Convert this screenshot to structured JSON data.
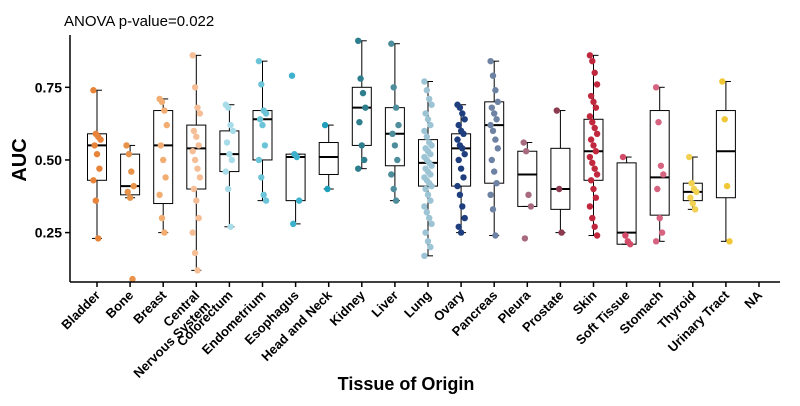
{
  "chart_data": {
    "type": "box",
    "annotation": "ANOVA p-value=0.022",
    "ylabel": "AUC",
    "xlabel": "Tissue of Origin",
    "ylim": [
      0.08,
      0.93
    ],
    "yticks": [
      0.25,
      0.5,
      0.75
    ],
    "ytick_labels": [
      "0.25",
      "0.50",
      "0.75"
    ],
    "grid": false,
    "categories": [
      {
        "name": "Bladder",
        "color": "#E8843A",
        "box": {
          "whisker_low": 0.23,
          "q1": 0.43,
          "median": 0.55,
          "q3": 0.59,
          "whisker_high": 0.74
        },
        "points": [
          0.74,
          0.59,
          0.58,
          0.57,
          0.55,
          0.52,
          0.47,
          0.43,
          0.36,
          0.23
        ]
      },
      {
        "name": "Bone",
        "color": "#E8924A",
        "box": {
          "whisker_low": 0.37,
          "q1": 0.38,
          "median": 0.41,
          "q3": 0.52,
          "whisker_high": 0.55
        },
        "points": [
          0.55,
          0.52,
          0.46,
          0.41,
          0.39,
          0.37,
          0.09
        ]
      },
      {
        "name": "Breast",
        "color": "#F2AE72",
        "box": {
          "whisker_low": 0.25,
          "q1": 0.35,
          "median": 0.55,
          "q3": 0.67,
          "whisker_high": 0.71
        },
        "points": [
          0.71,
          0.7,
          0.67,
          0.62,
          0.55,
          0.5,
          0.44,
          0.38,
          0.3,
          0.25
        ]
      },
      {
        "name": "Central Nervous System",
        "color": "#F5BE96",
        "box": {
          "whisker_low": 0.12,
          "q1": 0.4,
          "median": 0.54,
          "q3": 0.62,
          "whisker_high": 0.86
        },
        "points": [
          0.86,
          0.75,
          0.68,
          0.66,
          0.6,
          0.58,
          0.55,
          0.53,
          0.5,
          0.47,
          0.44,
          0.4,
          0.36,
          0.3,
          0.25,
          0.18,
          0.12
        ]
      },
      {
        "name": "Colorectum",
        "color": "#A8DCE8",
        "box": {
          "whisker_low": 0.27,
          "q1": 0.46,
          "median": 0.52,
          "q3": 0.6,
          "whisker_high": 0.69
        },
        "points": [
          0.69,
          0.68,
          0.62,
          0.6,
          0.56,
          0.52,
          0.5,
          0.46,
          0.4,
          0.27
        ]
      },
      {
        "name": "Endometrium",
        "color": "#6CC4D8",
        "box": {
          "whisker_low": 0.36,
          "q1": 0.5,
          "median": 0.64,
          "q3": 0.67,
          "whisker_high": 0.84
        },
        "points": [
          0.84,
          0.76,
          0.67,
          0.66,
          0.64,
          0.62,
          0.55,
          0.5,
          0.44,
          0.38,
          0.36
        ]
      },
      {
        "name": "Esophagus",
        "color": "#3EB2CC",
        "box": {
          "whisker_low": 0.28,
          "q1": 0.36,
          "median": 0.51,
          "q3": 0.52,
          "whisker_high": 0.52
        },
        "points": [
          0.79,
          0.52,
          0.51,
          0.36,
          0.28
        ]
      },
      {
        "name": "Head and Neck",
        "color": "#1EA0BC",
        "box": {
          "whisker_low": 0.4,
          "q1": 0.45,
          "median": 0.51,
          "q3": 0.56,
          "whisker_high": 0.62
        },
        "points": [
          0.62,
          0.4
        ]
      },
      {
        "name": "Kidney",
        "color": "#2E7E8E",
        "box": {
          "whisker_low": 0.47,
          "q1": 0.55,
          "median": 0.68,
          "q3": 0.75,
          "whisker_high": 0.91
        },
        "points": [
          0.91,
          0.78,
          0.73,
          0.68,
          0.63,
          0.55,
          0.5,
          0.47
        ]
      },
      {
        "name": "Liver",
        "color": "#4E8E9C",
        "box": {
          "whisker_low": 0.36,
          "q1": 0.48,
          "median": 0.59,
          "q3": 0.68,
          "whisker_high": 0.9
        },
        "points": [
          0.9,
          0.75,
          0.68,
          0.62,
          0.59,
          0.55,
          0.5,
          0.45,
          0.4,
          0.36
        ]
      },
      {
        "name": "Lung",
        "color": "#9CC4D4",
        "box": {
          "whisker_low": 0.17,
          "q1": 0.41,
          "median": 0.49,
          "q3": 0.57,
          "whisker_high": 0.77
        },
        "points": [
          0.77,
          0.74,
          0.71,
          0.69,
          0.66,
          0.64,
          0.62,
          0.6,
          0.58,
          0.56,
          0.55,
          0.54,
          0.53,
          0.52,
          0.51,
          0.5,
          0.49,
          0.48,
          0.47,
          0.46,
          0.45,
          0.44,
          0.43,
          0.42,
          0.41,
          0.4,
          0.38,
          0.36,
          0.34,
          0.32,
          0.3,
          0.28,
          0.25,
          0.22,
          0.2,
          0.17
        ]
      },
      {
        "name": "Ovary",
        "color": "#1E3E7E",
        "box": {
          "whisker_low": 0.25,
          "q1": 0.41,
          "median": 0.54,
          "q3": 0.59,
          "whisker_high": 0.69
        },
        "points": [
          0.69,
          0.68,
          0.66,
          0.64,
          0.62,
          0.6,
          0.59,
          0.57,
          0.55,
          0.54,
          0.52,
          0.5,
          0.47,
          0.44,
          0.41,
          0.38,
          0.34,
          0.3,
          0.27,
          0.25
        ]
      },
      {
        "name": "Pancreas",
        "color": "#6E82A4",
        "box": {
          "whisker_low": 0.24,
          "q1": 0.42,
          "median": 0.62,
          "q3": 0.7,
          "whisker_high": 0.84
        },
        "points": [
          0.84,
          0.79,
          0.74,
          0.7,
          0.68,
          0.66,
          0.64,
          0.62,
          0.6,
          0.57,
          0.54,
          0.5,
          0.46,
          0.42,
          0.38,
          0.33,
          0.24
        ]
      },
      {
        "name": "Pleura",
        "color": "#A86A80",
        "box": {
          "whisker_low": 0.34,
          "q1": 0.34,
          "median": 0.45,
          "q3": 0.53,
          "whisker_high": 0.56
        },
        "points": [
          0.56,
          0.53,
          0.38,
          0.34,
          0.23
        ]
      },
      {
        "name": "Prostate",
        "color": "#8C3A50",
        "box": {
          "whisker_low": 0.25,
          "q1": 0.33,
          "median": 0.4,
          "q3": 0.54,
          "whisker_high": 0.67
        },
        "points": [
          0.67,
          0.4,
          0.25
        ]
      },
      {
        "name": "Skin",
        "color": "#C0283E",
        "box": {
          "whisker_low": 0.24,
          "q1": 0.43,
          "median": 0.53,
          "q3": 0.64,
          "whisker_high": 0.86
        },
        "points": [
          0.86,
          0.84,
          0.8,
          0.76,
          0.72,
          0.7,
          0.68,
          0.65,
          0.63,
          0.61,
          0.59,
          0.57,
          0.55,
          0.53,
          0.51,
          0.49,
          0.47,
          0.45,
          0.43,
          0.4,
          0.37,
          0.34,
          0.3,
          0.27,
          0.24
        ]
      },
      {
        "name": "Soft Tissue",
        "color": "#D24B68",
        "box": {
          "whisker_low": 0.21,
          "q1": 0.21,
          "median": 0.25,
          "q3": 0.49,
          "whisker_high": 0.51
        },
        "points": [
          0.51,
          0.24,
          0.22,
          0.21
        ]
      },
      {
        "name": "Stomach",
        "color": "#D66480",
        "box": {
          "whisker_low": 0.22,
          "q1": 0.31,
          "median": 0.44,
          "q3": 0.67,
          "whisker_high": 0.75
        },
        "points": [
          0.75,
          0.63,
          0.48,
          0.45,
          0.4,
          0.3,
          0.25,
          0.22
        ]
      },
      {
        "name": "Thyroid",
        "color": "#F2D050",
        "box": {
          "whisker_low": 0.33,
          "q1": 0.36,
          "median": 0.39,
          "q3": 0.42,
          "whisker_high": 0.51
        },
        "points": [
          0.51,
          0.42,
          0.4,
          0.39,
          0.37,
          0.35,
          0.33
        ]
      },
      {
        "name": "Urinary Tract",
        "color": "#F0C836",
        "box": {
          "whisker_low": 0.22,
          "q1": 0.37,
          "median": 0.53,
          "q3": 0.67,
          "whisker_high": 0.77
        },
        "points": [
          0.77,
          0.64,
          0.41,
          0.22
        ]
      },
      {
        "name": "NA",
        "color": "#888888",
        "box": null,
        "points": []
      }
    ]
  }
}
